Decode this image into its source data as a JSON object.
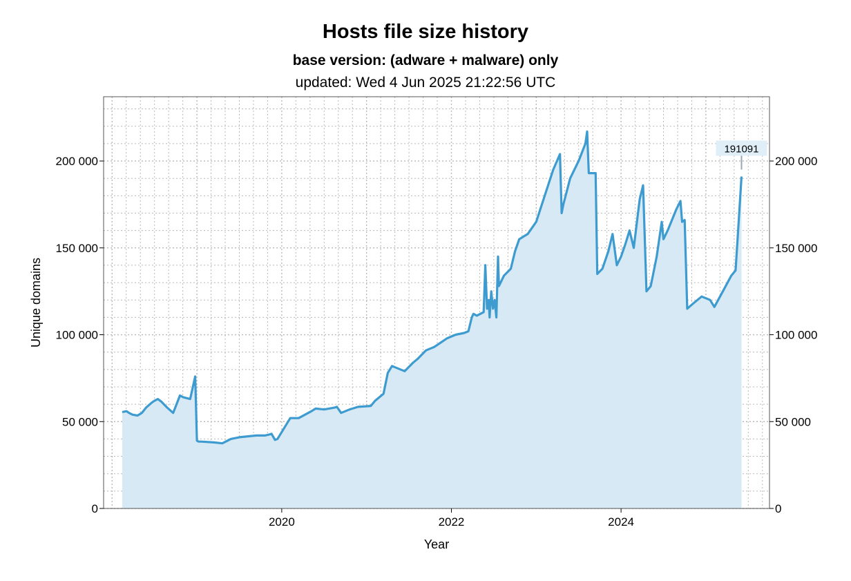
{
  "chart_data": {
    "type": "area",
    "title": "Hosts file size history",
    "subtitle": "base version: (adware + malware) only",
    "updated": "updated: Wed 4 Jun 2025 21:22:56 UTC",
    "xlabel": "Year",
    "ylabel": "Unique domains",
    "xlim": [
      2017.9,
      2025.75
    ],
    "ylim": [
      0,
      237000
    ],
    "x_ticks": [
      2020,
      2022,
      2024
    ],
    "x_tick_labels": [
      "2020",
      "2022",
      "2024"
    ],
    "y_ticks": [
      0,
      50000,
      100000,
      150000,
      200000
    ],
    "y_tick_labels": [
      "0",
      "50 000",
      "100 000",
      "150 000",
      "200 000"
    ],
    "grid": true,
    "annotation": {
      "text": "191091",
      "x": 2025.42,
      "y": 191091
    },
    "colors": {
      "line": "#3d9bd0",
      "fill": "#d6e9f5",
      "annotation_bg": "#e0eef8",
      "grid": "#b8b8b8"
    },
    "series": [
      {
        "x": [
          2018.12,
          2018.17,
          2018.2,
          2018.24,
          2018.3,
          2018.35,
          2018.4,
          2018.47,
          2018.5,
          2018.54,
          2018.58,
          2018.65,
          2018.72,
          2018.8,
          2018.84,
          2018.92,
          2018.98,
          2019.0,
          2019.02,
          2019.05,
          2019.2,
          2019.3,
          2019.4,
          2019.5,
          2019.6,
          2019.7,
          2019.8,
          2019.85,
          2019.88,
          2019.92,
          2019.95,
          2020.1,
          2020.2,
          2020.35,
          2020.4,
          2020.5,
          2020.62,
          2020.65,
          2020.7,
          2020.8,
          2020.9,
          2021.05,
          2021.1,
          2021.2,
          2021.25,
          2021.3,
          2021.45,
          2021.55,
          2021.6,
          2021.7,
          2021.8,
          2021.95,
          2022.05,
          2022.15,
          2022.2,
          2022.24,
          2022.26,
          2022.3,
          2022.38,
          2022.4,
          2022.42,
          2022.44,
          2022.45,
          2022.47,
          2022.49,
          2022.51,
          2022.53,
          2022.55,
          2022.56,
          2022.58,
          2022.62,
          2022.7,
          2022.75,
          2022.8,
          2022.9,
          2023.0,
          2023.1,
          2023.2,
          2023.28,
          2023.3,
          2023.32,
          2023.4,
          2023.5,
          2023.58,
          2023.6,
          2023.62,
          2023.66,
          2023.7,
          2023.72,
          2023.78,
          2023.85,
          2023.9,
          2023.95,
          2024.0,
          2024.05,
          2024.1,
          2024.15,
          2024.22,
          2024.26,
          2024.3,
          2024.35,
          2024.42,
          2024.48,
          2024.5,
          2024.55,
          2024.65,
          2024.7,
          2024.72,
          2024.75,
          2024.78,
          2024.85,
          2024.95,
          2025.05,
          2025.1,
          2025.2,
          2025.3,
          2025.35,
          2025.38,
          2025.42
        ],
        "y": [
          55500,
          56000,
          55000,
          54000,
          53500,
          55000,
          58000,
          61000,
          62000,
          63000,
          61500,
          58000,
          55000,
          65000,
          64000,
          63000,
          76000,
          39000,
          38500,
          38500,
          38000,
          37500,
          40000,
          41000,
          41500,
          42000,
          42000,
          42500,
          43000,
          39500,
          40000,
          52000,
          52000,
          56000,
          57500,
          57000,
          58000,
          58500,
          55000,
          57000,
          58500,
          59000,
          62000,
          66000,
          78000,
          82000,
          79000,
          84000,
          86000,
          91000,
          93000,
          98000,
          100000,
          101000,
          102000,
          110000,
          112000,
          111000,
          113000,
          140000,
          115000,
          120000,
          110000,
          125000,
          115000,
          120000,
          110000,
          145000,
          128000,
          130000,
          134000,
          138000,
          148000,
          155000,
          158000,
          165000,
          180000,
          195000,
          204000,
          170000,
          175000,
          190000,
          200000,
          210000,
          217000,
          193000,
          193000,
          193000,
          135000,
          138000,
          148000,
          158000,
          140000,
          145000,
          152000,
          160000,
          150000,
          178000,
          186000,
          125000,
          128000,
          145000,
          165000,
          155000,
          160000,
          172000,
          177000,
          165000,
          166000,
          115000,
          118000,
          122000,
          120000,
          116000,
          125000,
          134000,
          137000,
          160000,
          191091
        ]
      }
    ]
  }
}
